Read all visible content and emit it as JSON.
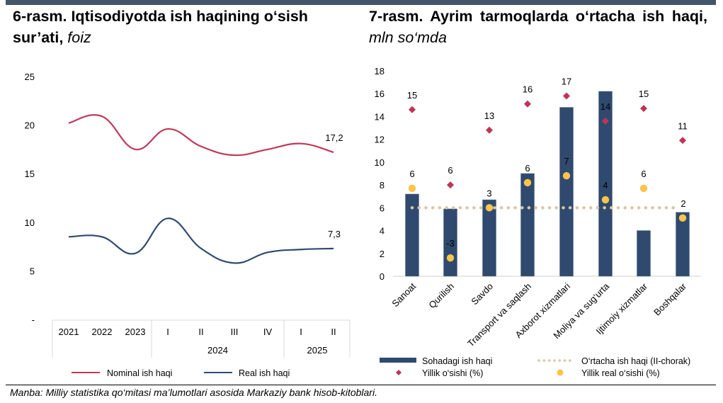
{
  "colors": {
    "topbar": "#44546a",
    "nominal": "#c0395a",
    "real": "#2f4a6e",
    "bar": "#2f4a6e",
    "diamond": "#be3556",
    "dot": "#fcc44a",
    "avg_line": "#d9c6a8",
    "table_border": "#d9d9d9"
  },
  "source_text": "Manba: Milliy statistika qo‘mitasi ma’lumotlari asosida Markaziy bank hisob-kitoblari.",
  "chart_data": [
    {
      "type": "line",
      "title": "6-rasm. Iqtisodiyotda ish haqining o‘sish sur’ati,",
      "title_unit": "foiz",
      "xlabel": "",
      "ylabel": "",
      "ylim": [
        0,
        25
      ],
      "yticks": [
        0,
        5,
        10,
        15,
        20,
        25
      ],
      "ytick_labels": [
        "-",
        "5",
        "10",
        "15",
        "20",
        "25"
      ],
      "categories": [
        "2021",
        "2022",
        "2023",
        "I",
        "II",
        "III",
        "IV",
        "I",
        "II"
      ],
      "category_groups": [
        {
          "label": "",
          "span": 3
        },
        {
          "label": "2024",
          "span": 4
        },
        {
          "label": "2025",
          "span": 2
        }
      ],
      "series": [
        {
          "name": "Nominal ish haqi",
          "values": [
            20.2,
            20.9,
            17.5,
            19.6,
            17.8,
            16.9,
            17.5,
            18.1,
            17.2
          ],
          "end_label": "17,2"
        },
        {
          "name": "Real ish haqi",
          "values": [
            8.5,
            8.5,
            6.8,
            10.4,
            7.3,
            5.8,
            6.9,
            7.2,
            7.3
          ],
          "end_label": "7,3"
        }
      ],
      "grid": false,
      "legend_position": "bottom"
    },
    {
      "type": "bar",
      "title": "7-rasm. Ayrim tarmoqlarda o‘rtacha ish haqi,",
      "title_unit": "mln so‘mda",
      "xlabel": "",
      "ylabel": "",
      "ylim": [
        0,
        18
      ],
      "yticks": [
        0,
        2,
        4,
        6,
        8,
        10,
        12,
        14,
        16,
        18
      ],
      "categories": [
        "Sanoat",
        "Qurilish",
        "Savdo",
        "Transport va saqlash",
        "Axborot xizmatlari",
        "Moliya va sug‘urta",
        "Ijtimoiy xizmatlar",
        "Boshqalar"
      ],
      "series": [
        {
          "name": "Sohadagi ish haqi",
          "kind": "bar",
          "values": [
            7.2,
            5.9,
            6.7,
            9.0,
            14.8,
            16.2,
            4.0,
            5.6
          ]
        },
        {
          "name": "O‘rtacha ish haqi (II-chorak)",
          "kind": "dotted-line",
          "value": 6.0
        },
        {
          "name": "Yillik o‘sishi (%)",
          "kind": "diamond",
          "values": [
            15,
            6,
            13,
            16,
            17,
            14,
            15,
            11
          ],
          "plot_positions": [
            14.6,
            8.0,
            12.8,
            15.1,
            15.8,
            13.6,
            14.7,
            11.9
          ]
        },
        {
          "name": "Yillik real o‘sishi (%)",
          "kind": "dot",
          "values": [
            6,
            -3,
            3,
            6,
            7,
            4,
            6,
            2
          ],
          "plot_positions": [
            7.7,
            1.6,
            6.0,
            8.2,
            8.8,
            6.7,
            7.7,
            5.1
          ]
        }
      ],
      "grid": false,
      "legend_position": "bottom"
    }
  ]
}
